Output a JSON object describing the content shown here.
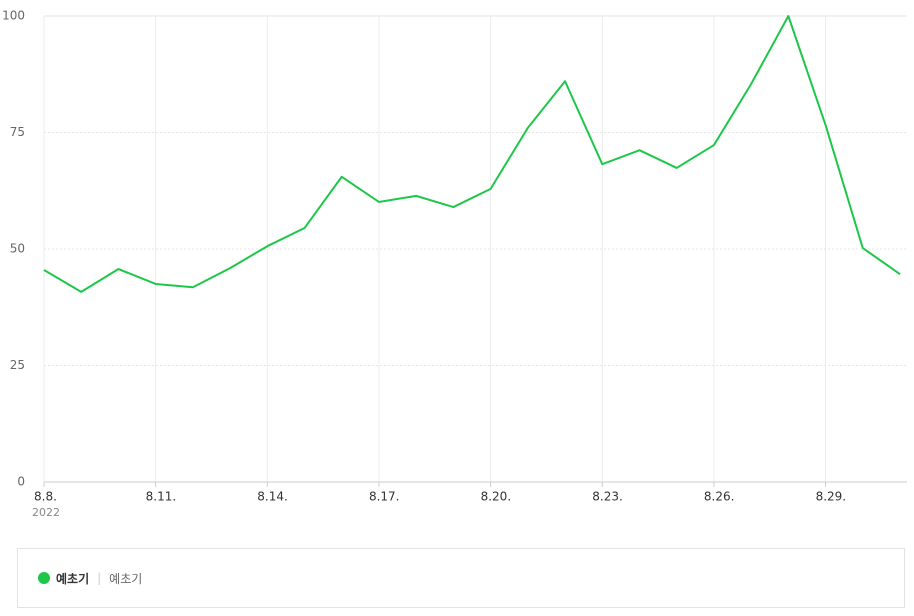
{
  "chart_data": {
    "type": "line",
    "categories": [
      "8.8.",
      null,
      null,
      "8.11.",
      null,
      null,
      "8.14.",
      null,
      null,
      "8.17.",
      null,
      null,
      "8.20.",
      null,
      null,
      "8.23.",
      null,
      null,
      "8.26.",
      null,
      null,
      "8.29.",
      null,
      null
    ],
    "year_label": "2022",
    "series": [
      {
        "name": "예초기",
        "color": "#1ec74a",
        "values": [
          45.5,
          40.8,
          45.7,
          42.5,
          41.8,
          45.9,
          50.6,
          54.5,
          65.5,
          60.1,
          61.4,
          59,
          62.9,
          76,
          86,
          68.2,
          71.2,
          67.4,
          72.3,
          85.4,
          100,
          76.6,
          50.2,
          44.6
        ]
      }
    ],
    "legend_detail": "예초기",
    "ylim": [
      0,
      100
    ],
    "yticks": [
      0,
      25,
      50,
      75,
      100
    ],
    "grid": true
  }
}
